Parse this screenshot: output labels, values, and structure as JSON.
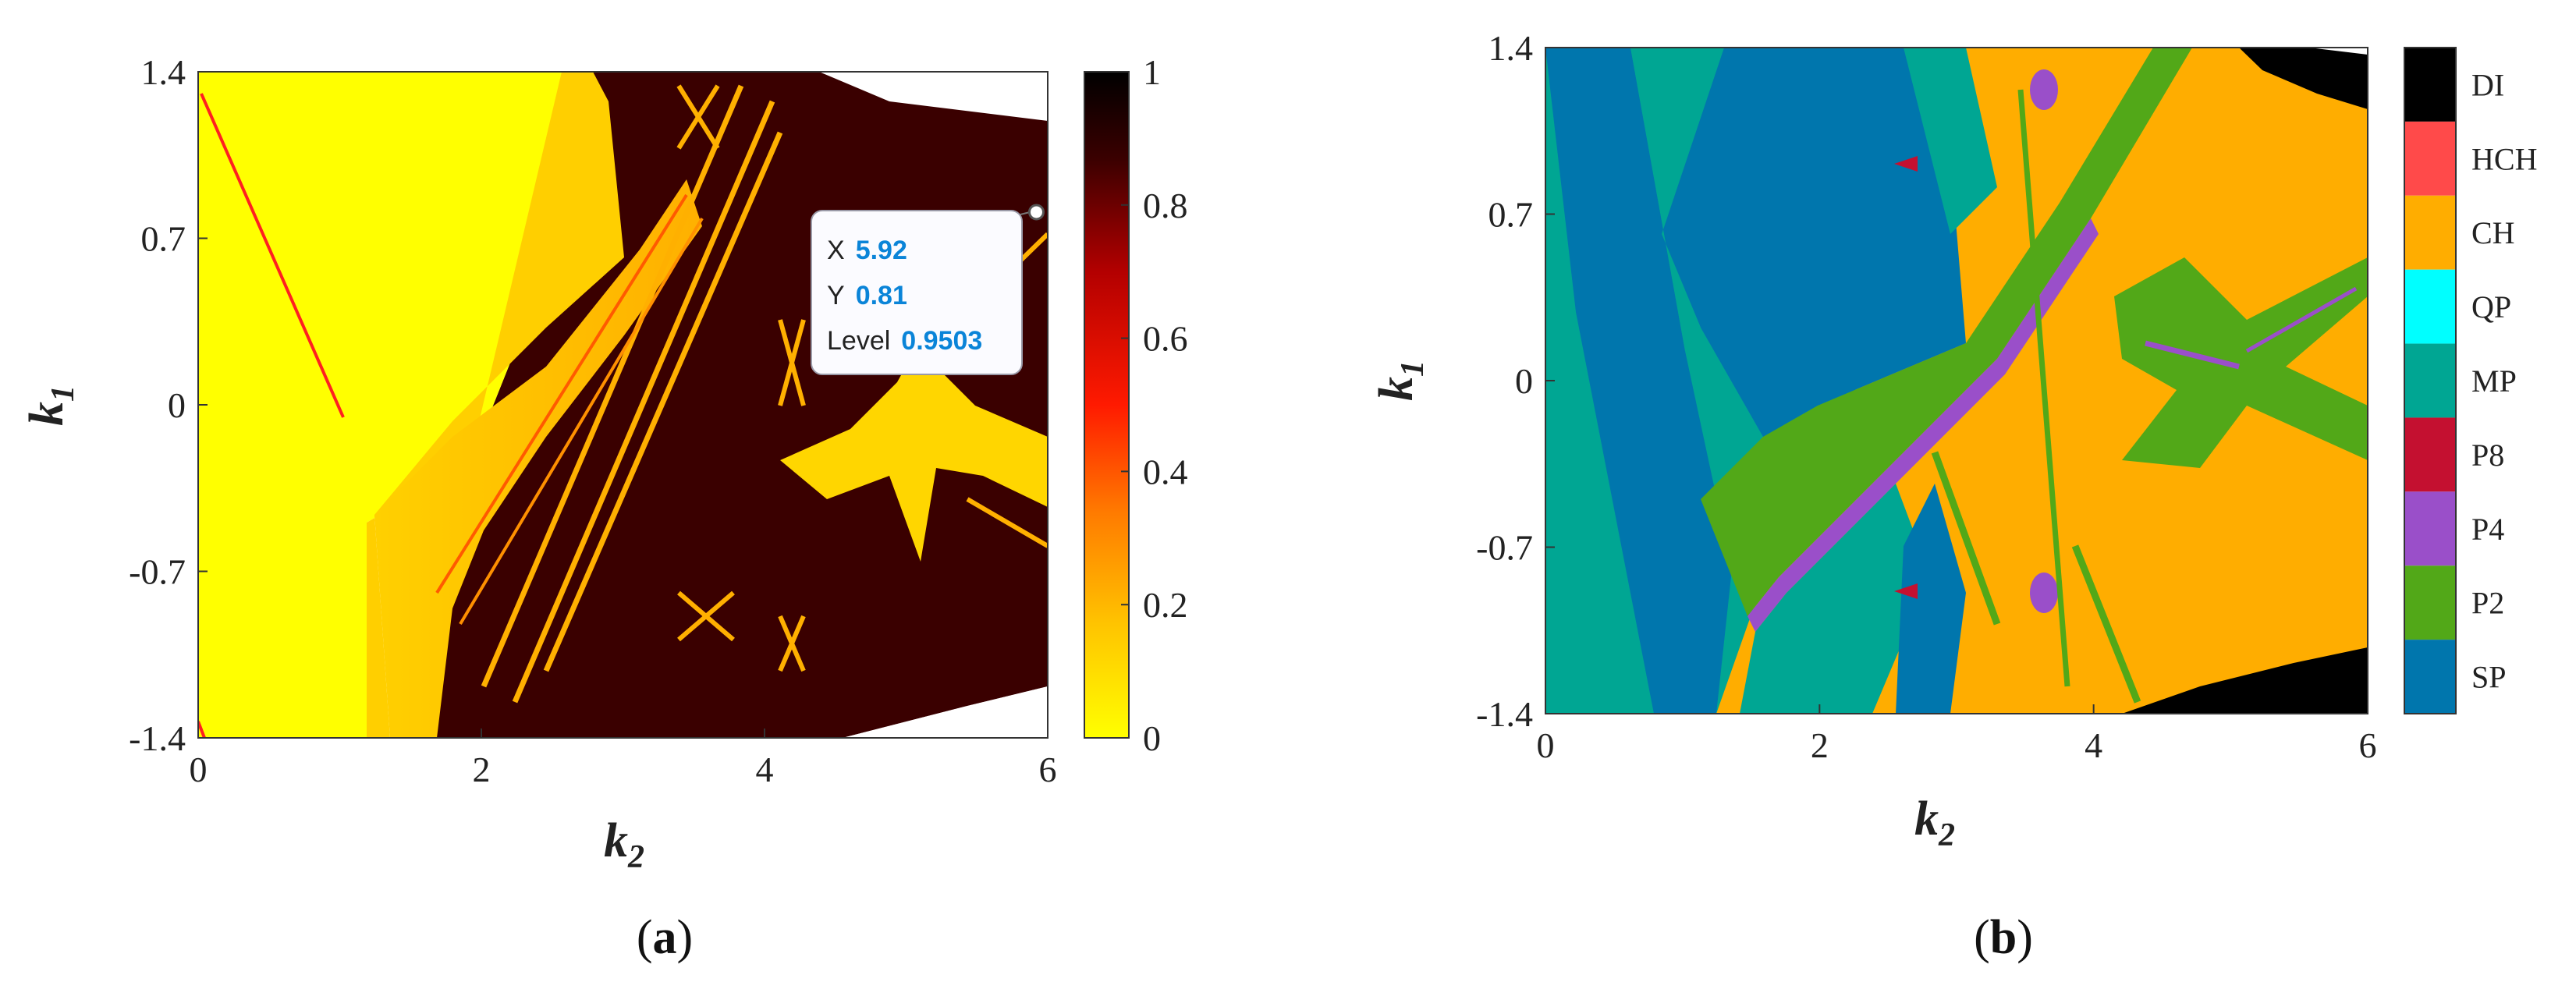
{
  "chart_data": [
    {
      "type": "heatmap",
      "caption_letter": "a",
      "xlabel": "k",
      "xlabel_sub": "2",
      "ylabel": "k",
      "ylabel_sub": "1",
      "xlim": [
        0,
        6
      ],
      "ylim": [
        -1.4,
        1.4
      ],
      "x_ticks": [
        "0",
        "2",
        "4",
        "6"
      ],
      "y_ticks": [
        "1.4",
        "0.7",
        "0",
        "-0.7",
        "-1.4"
      ],
      "colorbar": {
        "ticks": [
          "1",
          "0.8",
          "0.6",
          "0.4",
          "0.2",
          "0"
        ],
        "range": [
          0,
          1
        ],
        "colormap": [
          "#ffff00",
          "#ffc400",
          "#ff7a00",
          "#ff1a00",
          "#b30000",
          "#3a0000",
          "#000000"
        ]
      },
      "datatip": {
        "x_key": "X",
        "x_val": "5.92",
        "y_key": "Y",
        "y_val": "0.81",
        "level_key": "Level",
        "level_val": "0.9503",
        "x": 5.92,
        "y": 0.81
      }
    },
    {
      "type": "heatmap",
      "caption_letter": "b",
      "xlabel": "k",
      "xlabel_sub": "2",
      "ylabel": "k",
      "ylabel_sub": "1",
      "xlim": [
        0,
        6
      ],
      "ylim": [
        -1.4,
        1.4
      ],
      "x_ticks": [
        "0",
        "2",
        "4",
        "6"
      ],
      "y_ticks": [
        "1.4",
        "0.7",
        "0",
        "-0.7",
        "-1.4"
      ],
      "legend": [
        {
          "label": "DI",
          "color": "#000000"
        },
        {
          "label": "HCH",
          "color": "#ff4a4a"
        },
        {
          "label": "CH",
          "color": "#ffad00"
        },
        {
          "label": "QP",
          "color": "#00ffff"
        },
        {
          "label": "MP",
          "color": "#00a693"
        },
        {
          "label": "P8",
          "color": "#c41030"
        },
        {
          "label": "P4",
          "color": "#9a4fc9"
        },
        {
          "label": "P2",
          "color": "#52a818"
        },
        {
          "label": "SP",
          "color": "#0076ad"
        }
      ]
    }
  ],
  "colors": {
    "axis": "#333333",
    "tip_value": "#0a84d8"
  }
}
